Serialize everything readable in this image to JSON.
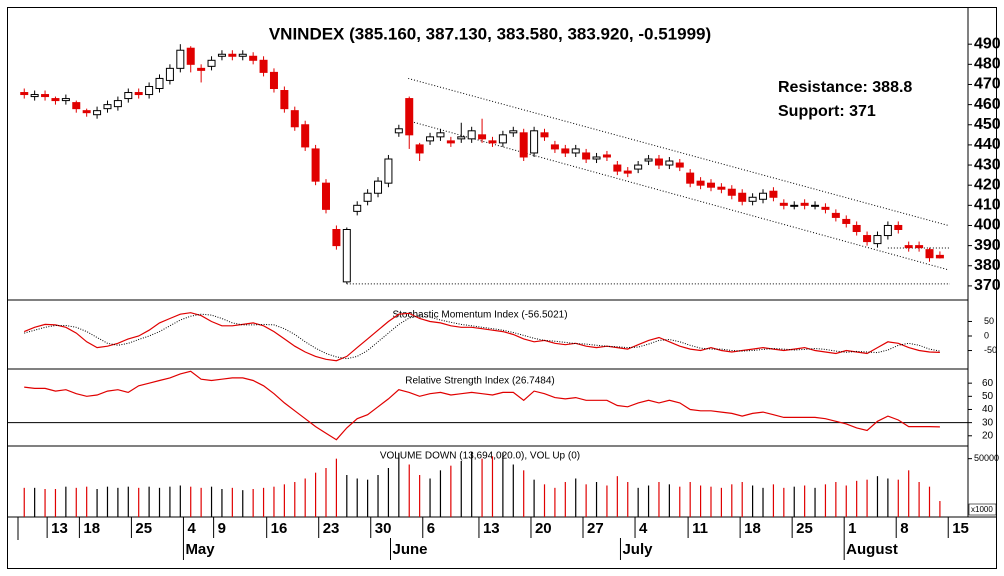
{
  "chart_data": {
    "type": "candlestick",
    "title": "VNINDEX (385.160, 387.130, 383.580, 383.920, -0.51999)",
    "up_color": "#ffffff",
    "down_color": "#e00000",
    "open": [
      466,
      464,
      465,
      463,
      462,
      461,
      457,
      455,
      458,
      459,
      463,
      466,
      465,
      468,
      472,
      478,
      488,
      478,
      479,
      484,
      485,
      484,
      484,
      482,
      476,
      467,
      457,
      450,
      438,
      421,
      398,
      372,
      407,
      412,
      416,
      421,
      446,
      463,
      440,
      442,
      444,
      442,
      443,
      443,
      445,
      442,
      441,
      446,
      446,
      436,
      446,
      440,
      438,
      436,
      436,
      433,
      435,
      430,
      427,
      428,
      432,
      433,
      430,
      431,
      426,
      422,
      421,
      419,
      418,
      416,
      412,
      413,
      417,
      411,
      410,
      411,
      410,
      409,
      406,
      403,
      400,
      395,
      391,
      395,
      400,
      390,
      390,
      388,
      385.16
    ],
    "high": [
      468,
      467,
      467,
      464,
      465,
      462,
      458,
      459,
      462,
      464,
      468,
      468,
      471,
      475,
      480,
      490,
      489,
      480,
      484,
      487,
      487,
      487,
      486,
      484,
      478,
      469,
      459,
      452,
      440,
      423,
      400,
      399,
      412,
      418,
      424,
      435,
      450,
      464,
      441,
      446,
      448,
      444,
      451,
      449,
      453,
      444,
      447,
      449,
      448,
      449,
      448,
      442,
      440,
      440,
      438,
      436,
      437,
      432,
      429,
      432,
      435,
      435,
      434,
      433,
      428,
      424,
      423,
      421,
      420,
      418,
      416,
      418,
      419,
      413,
      412,
      413,
      412,
      411,
      408,
      405,
      402,
      397,
      397,
      402,
      402,
      392,
      392,
      389,
      387.13
    ],
    "low": [
      463,
      462,
      462,
      460,
      460,
      456,
      454,
      453,
      456,
      457,
      461,
      463,
      463,
      466,
      470,
      476,
      476,
      471,
      477,
      482,
      482,
      482,
      480,
      474,
      466,
      456,
      447,
      437,
      420,
      406,
      388,
      371,
      405,
      410,
      414,
      419,
      444,
      438,
      432,
      440,
      442,
      439,
      441,
      441,
      441,
      439,
      439,
      444,
      432,
      434,
      442,
      436,
      434,
      434,
      431,
      431,
      432,
      425,
      424,
      426,
      430,
      428,
      428,
      427,
      419,
      418,
      417,
      416,
      413,
      410,
      410,
      411,
      412,
      408,
      408,
      408,
      408,
      406,
      402,
      399,
      395,
      390,
      389,
      393,
      396,
      387,
      387,
      382,
      383.58
    ],
    "close": [
      465,
      465,
      464,
      462,
      463,
      458,
      456,
      457,
      460,
      462,
      466,
      465,
      469,
      473,
      478,
      487,
      480,
      477,
      482,
      485,
      484,
      485,
      482,
      476,
      468,
      458,
      449,
      439,
      422,
      408,
      390,
      398,
      410,
      416,
      422,
      433,
      448,
      445,
      436,
      444,
      446,
      441,
      444,
      447,
      443,
      441,
      445,
      447,
      434,
      447,
      444,
      438,
      436,
      438,
      433,
      434,
      434,
      427,
      426,
      430,
      433,
      430,
      432,
      429,
      421,
      420,
      419,
      418,
      415,
      412,
      414,
      416,
      414,
      410,
      410,
      410,
      410,
      408,
      404,
      401,
      397,
      392,
      395,
      400,
      398,
      389,
      389,
      384,
      383.92
    ],
    "xlim": [
      -0.6,
      90.7
    ],
    "ylim": [
      363,
      503
    ],
    "yticks": [
      370,
      380,
      390,
      400,
      410,
      420,
      430,
      440,
      450,
      460,
      470,
      480,
      490
    ],
    "xticks": [
      {
        "value": 2.2,
        "label": "13"
      },
      {
        "value": 5.3,
        "label": "18"
      },
      {
        "value": 10.3,
        "label": "25"
      },
      {
        "value": 15.3,
        "label": "4"
      },
      {
        "value": 18.2,
        "label": "9"
      },
      {
        "value": 23.3,
        "label": "16"
      },
      {
        "value": 28.3,
        "label": "23"
      },
      {
        "value": 33.3,
        "label": "30"
      },
      {
        "value": 38.3,
        "label": "6"
      },
      {
        "value": 43.7,
        "label": "13"
      },
      {
        "value": 48.7,
        "label": "20"
      },
      {
        "value": 53.7,
        "label": "27"
      },
      {
        "value": 58.7,
        "label": "4"
      },
      {
        "value": 63.8,
        "label": "11"
      },
      {
        "value": 68.8,
        "label": "18"
      },
      {
        "value": 73.8,
        "label": "25"
      },
      {
        "value": 78.8,
        "label": "1"
      },
      {
        "value": 83.8,
        "label": "8"
      },
      {
        "value": 88.8,
        "label": "15"
      }
    ],
    "month_ticks": [
      {
        "value": 15.3,
        "label": "May"
      },
      {
        "value": 35.2,
        "label": "June"
      },
      {
        "value": 57.3,
        "label": "July"
      },
      {
        "value": 78.8,
        "label": "August"
      }
    ],
    "resistance": {
      "label": "Resistance: 388.8",
      "value": 388.8
    },
    "support": {
      "label": "Support: 371",
      "value": 371
    },
    "trendlines": [
      {
        "x": [
          36.9,
          88.8
        ],
        "y": [
          473,
          400
        ]
      },
      {
        "x": [
          36.9,
          88.8
        ],
        "y": [
          452,
          378
        ]
      }
    ],
    "smi": {
      "title": "Stochastic Momentum Index (-56.5021)",
      "ylim": [
        -110,
        110
      ],
      "yticks": [
        -50,
        0,
        50
      ],
      "series": [
        {
          "color": "#e00000",
          "values": [
            15,
            30,
            40,
            38,
            30,
            10,
            -20,
            -40,
            -35,
            -25,
            -10,
            0,
            20,
            45,
            60,
            75,
            80,
            70,
            50,
            35,
            35,
            40,
            45,
            35,
            15,
            -10,
            -35,
            -55,
            -70,
            -80,
            -85,
            -70,
            -40,
            -10,
            20,
            50,
            75,
            78,
            60,
            50,
            45,
            35,
            30,
            30,
            25,
            20,
            15,
            5,
            -10,
            -20,
            -15,
            -25,
            -30,
            -25,
            -35,
            -40,
            -35,
            -40,
            -45,
            -30,
            -15,
            -5,
            -20,
            -35,
            -45,
            -50,
            -40,
            -50,
            -55,
            -50,
            -45,
            -40,
            -45,
            -50,
            -45,
            -40,
            -50,
            -55,
            -60,
            -50,
            -55,
            -60,
            -40,
            -20,
            -25,
            -40,
            -50,
            -55,
            -56.5021
          ]
        },
        {
          "color": "#000000",
          "dashed": true,
          "values": [
            10,
            20,
            30,
            36,
            36,
            30,
            15,
            -5,
            -25,
            -32,
            -25,
            -12,
            0,
            15,
            35,
            55,
            68,
            75,
            72,
            60,
            45,
            38,
            38,
            40,
            38,
            25,
            5,
            -20,
            -42,
            -60,
            -72,
            -78,
            -70,
            -50,
            -20,
            10,
            40,
            62,
            70,
            65,
            55,
            47,
            40,
            35,
            30,
            25,
            20,
            12,
            2,
            -8,
            -15,
            -18,
            -22,
            -26,
            -28,
            -32,
            -35,
            -37,
            -40,
            -38,
            -28,
            -15,
            -12,
            -20,
            -32,
            -42,
            -45,
            -45,
            -50,
            -52,
            -50,
            -46,
            -43,
            -45,
            -48,
            -46,
            -43,
            -46,
            -52,
            -56,
            -53,
            -55,
            -57,
            -48,
            -32,
            -25,
            -32,
            -45,
            -52
          ]
        }
      ]
    },
    "rsi": {
      "title": "Relative Strength Index (26.7484)",
      "ylim": [
        13,
        70
      ],
      "yticks": [
        20,
        30,
        40,
        50,
        60
      ],
      "reference": 30,
      "series": [
        {
          "color": "#e00000",
          "values": [
            57,
            56,
            56,
            54,
            55,
            52,
            50,
            51,
            54,
            55,
            53,
            58,
            60,
            62,
            64,
            67,
            69,
            63,
            62,
            63,
            64,
            64,
            62,
            58,
            52,
            45,
            39,
            33,
            27,
            22,
            17,
            26,
            33,
            36,
            42,
            48,
            55,
            53,
            50,
            52,
            53,
            51,
            52,
            53,
            52,
            51,
            53,
            53,
            47,
            54,
            52,
            49,
            48,
            49,
            47,
            47,
            47,
            43,
            42,
            45,
            47,
            45,
            47,
            45,
            40,
            39,
            39,
            38,
            37,
            35,
            37,
            38,
            36,
            34,
            34,
            34,
            34,
            33,
            31,
            29,
            26,
            24,
            31,
            35,
            32,
            27,
            27,
            27,
            26.7484
          ]
        }
      ]
    },
    "volume": {
      "title": "VOLUME DOWN (13,694,020.0), VOL Up (0)",
      "unit_label": "x1000",
      "ylim": [
        0,
        60000
      ],
      "yticks": [
        50000
      ],
      "values": [
        25000,
        25000,
        24000,
        24000,
        26000,
        25000,
        26000,
        24000,
        26000,
        25000,
        26000,
        25000,
        26000,
        25000,
        26000,
        27000,
        26000,
        25000,
        26000,
        24000,
        25000,
        23000,
        24000,
        25000,
        26000,
        28000,
        30000,
        33000,
        38000,
        42000,
        50000,
        36000,
        33000,
        32000,
        36000,
        42000,
        55000,
        45000,
        36000,
        33000,
        40000,
        44000,
        48000,
        56000,
        50000,
        52000,
        55000,
        45000,
        40000,
        32000,
        28000,
        25000,
        30000,
        33000,
        28000,
        30000,
        27000,
        35000,
        30000,
        25000,
        27000,
        30000,
        28000,
        26000,
        30000,
        27000,
        26000,
        25000,
        28000,
        30000,
        27000,
        25000,
        28000,
        25000,
        26000,
        27000,
        25000,
        28000,
        30000,
        27000,
        31000,
        32000,
        35000,
        33000,
        32000,
        40000,
        30000,
        26000,
        13694.02
      ]
    }
  }
}
